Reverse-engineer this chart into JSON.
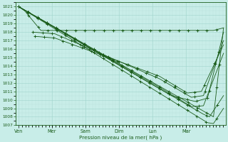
{
  "background_color": "#c8ede8",
  "grid_color_major": "#a0d4cc",
  "grid_color_minor": "#b8e0dc",
  "line_color": "#1a5c1a",
  "xlabel": "Pression niveau de la mer( hPa )",
  "ylim": [
    1007,
    1021.5
  ],
  "xlim": [
    -0.08,
    5.15
  ],
  "yticks": [
    1007,
    1008,
    1009,
    1010,
    1011,
    1012,
    1013,
    1014,
    1015,
    1016,
    1017,
    1018,
    1019,
    1020,
    1021
  ],
  "xtick_labels": [
    "Ven",
    "Mer",
    "Sam",
    "Dim",
    "Lun",
    "Mar"
  ],
  "xtick_positions": [
    0.0,
    0.83,
    1.67,
    2.5,
    3.33,
    4.17
  ],
  "lines": [
    {
      "xpts": [
        0.0,
        0.15,
        0.55,
        4.85,
        5.1
      ],
      "ypts": [
        1021.0,
        1020.5,
        1018.2,
        1018.2,
        1018.5
      ],
      "has_markers": true
    },
    {
      "xpts": [
        0.0,
        4.85,
        5.1
      ],
      "ypts": [
        1021.0,
        1008.0,
        1018.5
      ],
      "has_markers": true
    },
    {
      "xpts": [
        0.0,
        4.7,
        4.85,
        5.1
      ],
      "ypts": [
        1021.0,
        1007.3,
        1007.2,
        1009.0
      ],
      "has_markers": true
    },
    {
      "xpts": [
        0.0,
        4.6,
        4.75,
        5.1
      ],
      "ypts": [
        1021.0,
        1008.3,
        1008.0,
        1010.5
      ],
      "has_markers": true
    },
    {
      "xpts": [
        0.0,
        3.5,
        4.3,
        4.6,
        5.1
      ],
      "ypts": [
        1021.0,
        1011.5,
        1009.2,
        1009.3,
        1015.5
      ],
      "has_markers": true
    },
    {
      "xpts": [
        0.0,
        3.8,
        4.4,
        4.7,
        5.1
      ],
      "ypts": [
        1021.0,
        1010.5,
        1009.8,
        1010.2,
        1018.0
      ],
      "has_markers": true
    },
    {
      "xpts": [
        0.35,
        0.9,
        3.5,
        4.3,
        4.6,
        5.1
      ],
      "ypts": [
        1018.0,
        1017.8,
        1012.5,
        1010.3,
        1010.5,
        1017.0
      ],
      "has_markers": true
    },
    {
      "xpts": [
        0.4,
        0.9,
        3.5,
        4.2,
        4.55,
        5.1
      ],
      "ypts": [
        1017.5,
        1017.3,
        1012.8,
        1010.8,
        1011.0,
        1016.5
      ],
      "has_markers": true
    }
  ]
}
